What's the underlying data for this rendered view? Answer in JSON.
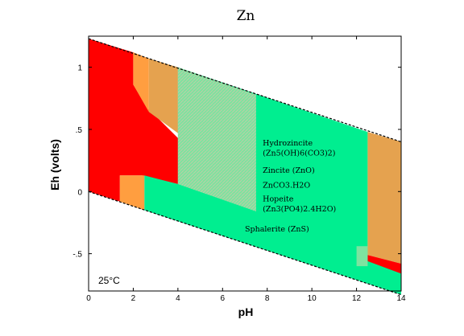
{
  "chart_data": {
    "type": "area",
    "title": "Zn",
    "xlabel": "pH",
    "ylabel": "Eh (volts)",
    "xlim": [
      0,
      14
    ],
    "ylim": [
      -0.8,
      1.25
    ],
    "x_ticks": [
      0,
      2,
      4,
      6,
      8,
      10,
      12,
      14
    ],
    "x_tick_labels": [
      "0",
      "2",
      "4",
      "6",
      "8",
      "10",
      "12",
      "14"
    ],
    "y_ticks": [
      1,
      0.5,
      0,
      -0.5
    ],
    "y_tick_labels": [
      "1",
      ".5",
      "0",
      "-.5"
    ],
    "temperature_label": "25°C",
    "colors": {
      "red": "#ff0000",
      "orange": "#ff9e40",
      "tan": "#e5a24f",
      "green": "#00ee90",
      "light_green": "#7de3a0",
      "stability_line": "#000000"
    },
    "water_limits": {
      "upper": {
        "x": [
          0,
          14
        ],
        "y": [
          1.23,
          0.4
        ]
      },
      "lower": {
        "x": [
          0,
          14
        ],
        "y": [
          0.0,
          -0.83
        ]
      }
    },
    "regions": [
      {
        "id": "red-field",
        "color": "red",
        "points": [
          [
            0,
            1.23
          ],
          [
            2.0,
            1.12
          ],
          [
            2.0,
            0.86
          ],
          [
            2.6,
            0.68
          ],
          [
            4.0,
            0.43
          ],
          [
            4.0,
            0.06
          ],
          [
            2.4,
            0.13
          ],
          [
            1.4,
            0.13
          ],
          [
            1.4,
            -0.08
          ],
          [
            0,
            0.0
          ]
        ]
      },
      {
        "id": "orange-field-top",
        "color": "orange",
        "points": [
          [
            2.0,
            1.12
          ],
          [
            2.7,
            1.07
          ],
          [
            2.7,
            0.64
          ],
          [
            2.0,
            0.86
          ]
        ]
      },
      {
        "id": "tan-field-top",
        "color": "tan",
        "points": [
          [
            2.7,
            1.07
          ],
          [
            4.0,
            1.0
          ],
          [
            4.0,
            0.47
          ],
          [
            2.7,
            0.64
          ]
        ]
      },
      {
        "id": "orange-field-low",
        "color": "orange",
        "points": [
          [
            1.4,
            0.13
          ],
          [
            2.5,
            0.13
          ],
          [
            2.5,
            -0.15
          ],
          [
            1.4,
            -0.08
          ]
        ]
      },
      {
        "id": "green-main",
        "color": "green",
        "points": [
          [
            4.0,
            1.0
          ],
          [
            12.5,
            0.48
          ],
          [
            12.5,
            -0.54
          ],
          [
            14.0,
            -0.64
          ],
          [
            14.0,
            -0.83
          ],
          [
            2.5,
            -0.15
          ],
          [
            2.5,
            0.13
          ],
          [
            4.0,
            0.06
          ]
        ]
      },
      {
        "id": "hatched-field",
        "color": "light_green",
        "points": [
          [
            4.0,
            1.0
          ],
          [
            7.5,
            0.78
          ],
          [
            7.5,
            -0.16
          ],
          [
            4.0,
            0.06
          ]
        ]
      },
      {
        "id": "tan-field-right",
        "color": "tan",
        "points": [
          [
            12.5,
            0.48
          ],
          [
            14.0,
            0.4
          ],
          [
            14.0,
            -0.58
          ],
          [
            12.5,
            -0.51
          ]
        ]
      },
      {
        "id": "red-field-right",
        "color": "red",
        "points": [
          [
            12.5,
            -0.51
          ],
          [
            14.0,
            -0.58
          ],
          [
            14.0,
            -0.66
          ],
          [
            12.5,
            -0.56
          ]
        ]
      },
      {
        "id": "light-green-strip",
        "color": "light_green",
        "points": [
          [
            12.0,
            -0.44
          ],
          [
            12.5,
            -0.44
          ],
          [
            12.5,
            -0.6
          ],
          [
            12.0,
            -0.6
          ]
        ]
      }
    ],
    "annotations": [
      {
        "text": "Hydrozincite",
        "x": 7.8,
        "y": 0.37
      },
      {
        "text": "(Zn5(OH)6(CO3)2)",
        "x": 7.8,
        "y": 0.29
      },
      {
        "text": "Zincite (ZnO)",
        "x": 7.8,
        "y": 0.15
      },
      {
        "text": "ZnCO3.H2O",
        "x": 7.8,
        "y": 0.03
      },
      {
        "text": "Hopeite",
        "x": 7.8,
        "y": -0.08
      },
      {
        "text": "(Zn3(PO4)2.4H2O)",
        "x": 7.8,
        "y": -0.16
      },
      {
        "text": "Sphalerite (ZnS)",
        "x": 7.0,
        "y": -0.32
      }
    ]
  }
}
